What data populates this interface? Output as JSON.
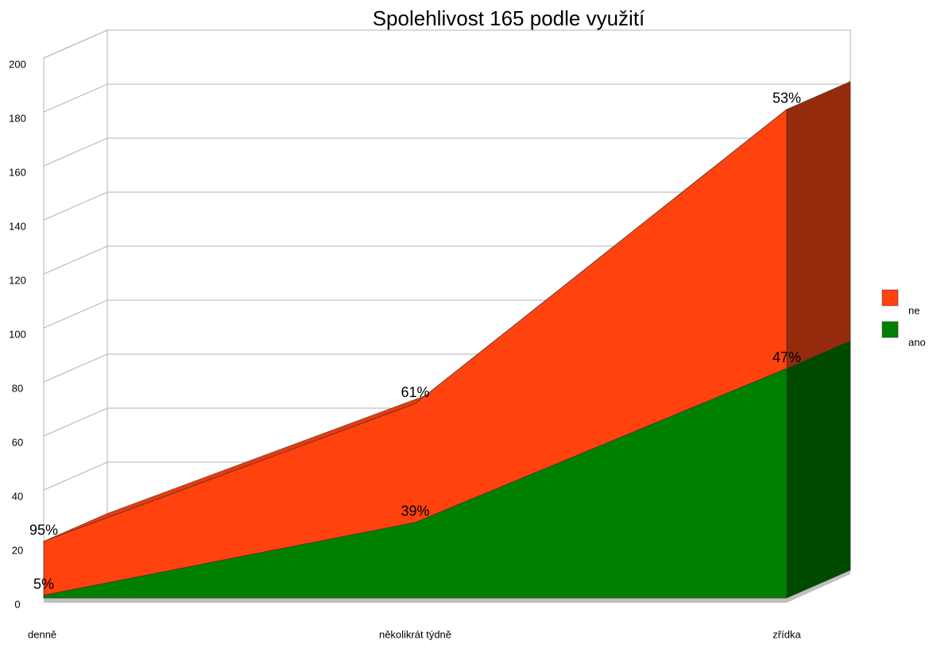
{
  "chart_data": {
    "type": "area3d",
    "title": "Spolehlivost 165 podle využití",
    "categories": [
      "denně",
      "několikrát týdně",
      "zřídka"
    ],
    "series": [
      {
        "name": "ano",
        "color": "#008000",
        "side_color": "#004a00",
        "values": [
          1,
          28,
          85
        ],
        "labels": [
          "5%",
          "39%",
          "47%"
        ]
      },
      {
        "name": "ne",
        "color": "#ff420e",
        "side_color": "#962a0c",
        "values": [
          20,
          44,
          96
        ],
        "labels": [
          "95%",
          "61%",
          "53%"
        ]
      }
    ],
    "stacked": true,
    "ylim": [
      0,
      200
    ],
    "yticks": [
      0,
      20,
      40,
      60,
      80,
      100,
      120,
      140,
      160,
      180,
      200
    ],
    "grid": true,
    "legend": "right"
  }
}
